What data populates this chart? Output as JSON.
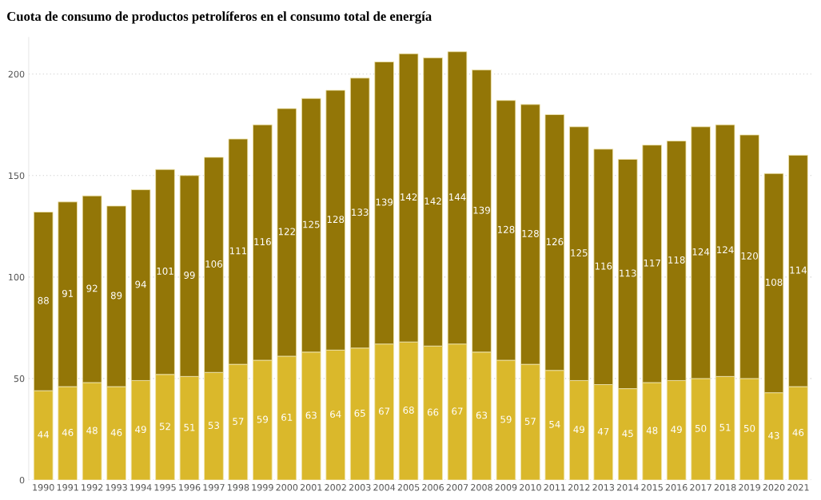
{
  "chart_data": {
    "type": "bar",
    "title": "Cuota de consumo de productos petrolíferos en el consumo total de energía",
    "categories": [
      "1990",
      "1991",
      "1992",
      "1993",
      "1994",
      "1995",
      "1996",
      "1997",
      "1998",
      "1999",
      "2000",
      "2001",
      "2002",
      "2003",
      "2004",
      "2005",
      "2006",
      "2007",
      "2008",
      "2009",
      "2010",
      "2011",
      "2012",
      "2013",
      "2014",
      "2015",
      "2016",
      "2017",
      "2018",
      "2019",
      "2020",
      "2021"
    ],
    "stacked": true,
    "data_labels": true,
    "series": [
      {
        "color": "#dab82b",
        "values": [
          44,
          46,
          48,
          46,
          49,
          52,
          51,
          53,
          57,
          59,
          61,
          63,
          64,
          65,
          67,
          68,
          66,
          67,
          63,
          59,
          57,
          54,
          49,
          47,
          45,
          48,
          49,
          50,
          51,
          50,
          43,
          46
        ]
      },
      {
        "color": "#937607",
        "values": [
          88,
          91,
          92,
          89,
          94,
          101,
          99,
          106,
          111,
          116,
          122,
          125,
          128,
          133,
          139,
          142,
          142,
          144,
          139,
          128,
          128,
          126,
          125,
          116,
          113,
          117,
          118,
          124,
          124,
          120,
          108,
          114
        ]
      }
    ],
    "ylim": [
      0,
      218
    ],
    "yticks": [
      0,
      50,
      100,
      150,
      200
    ],
    "grid": "y"
  }
}
